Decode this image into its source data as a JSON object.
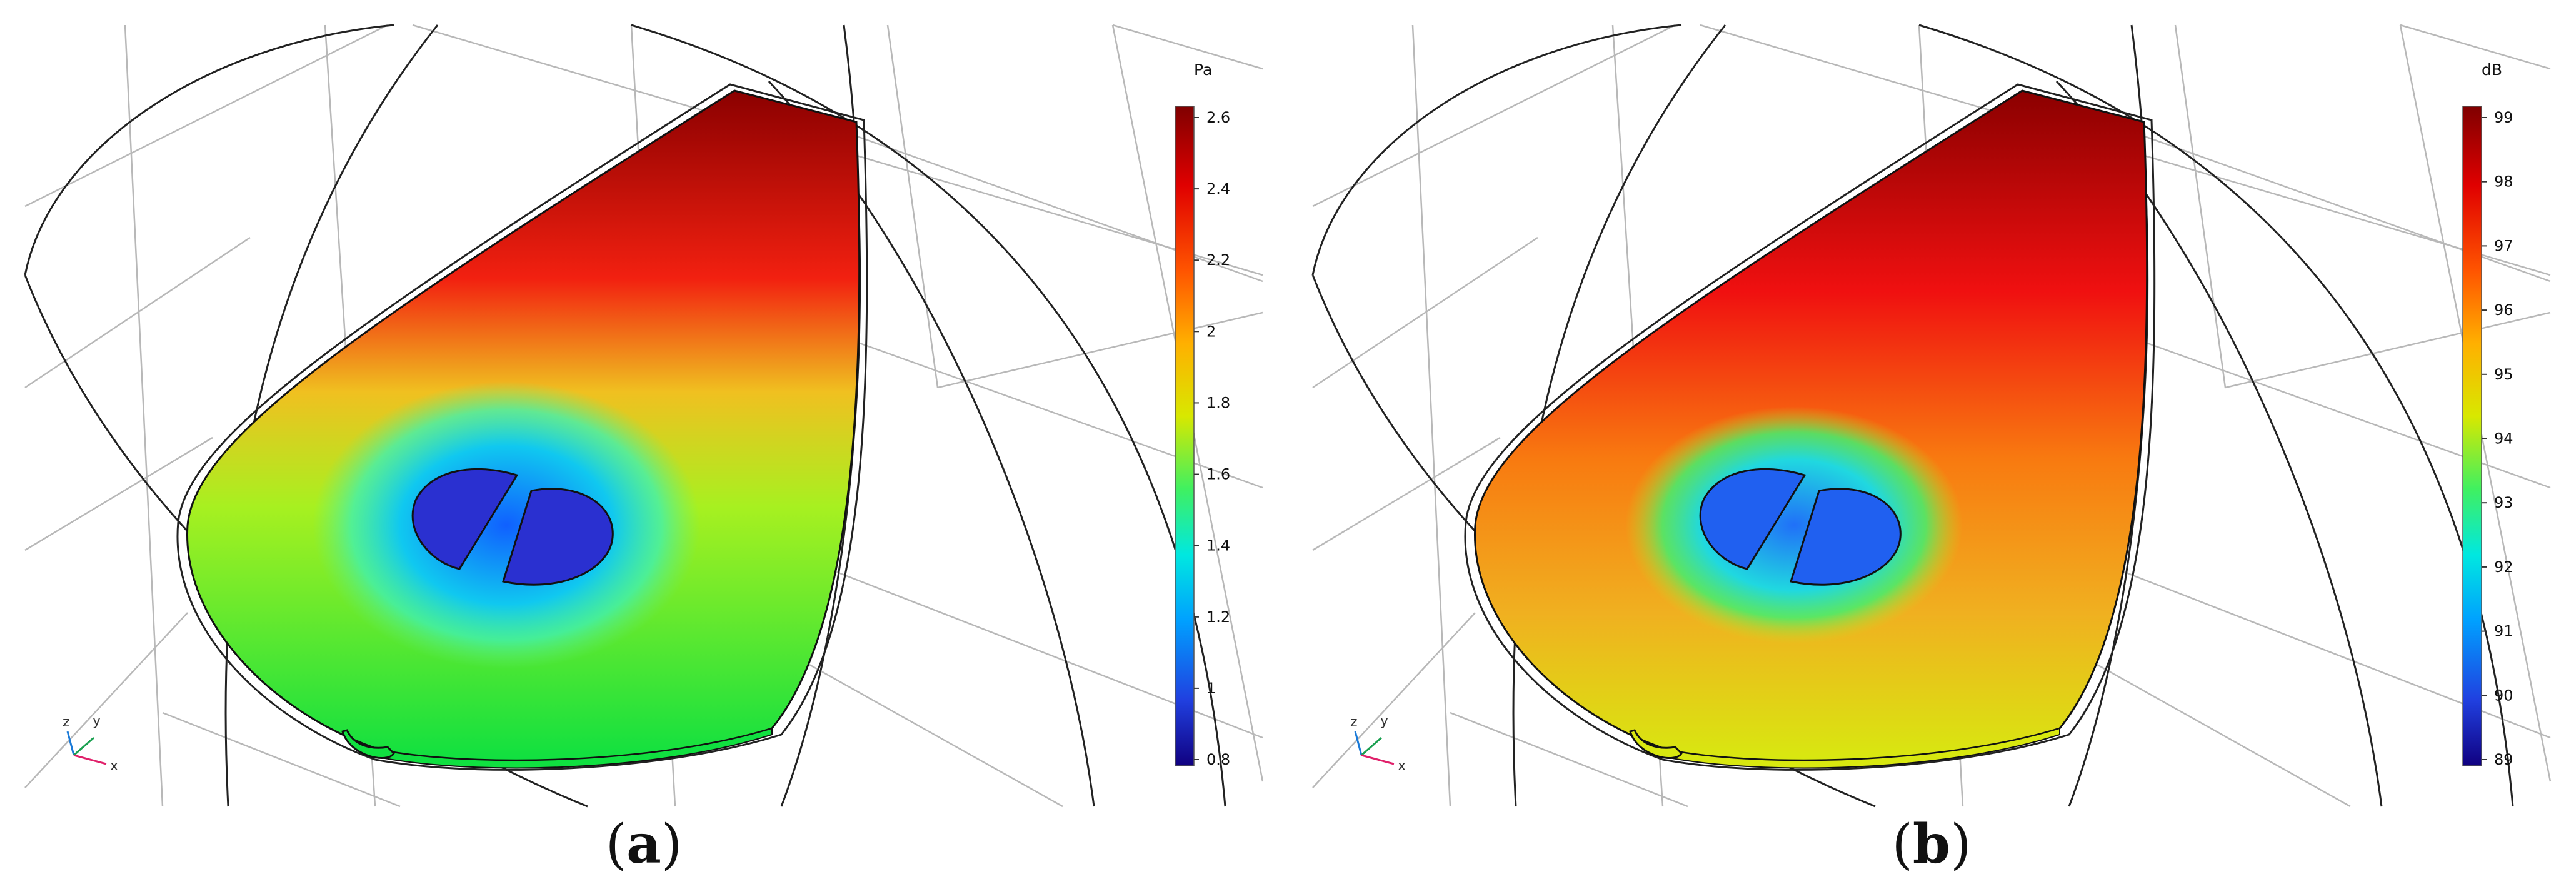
{
  "panels": [
    {
      "id": "a",
      "caption_letter": "a",
      "colorbar_unit": "Pa",
      "colorbar_ticks": [
        "2.6",
        "2.4",
        "2.2",
        "2",
        "1.8",
        "1.6",
        "1.4",
        "1.2",
        "1",
        "0.8"
      ],
      "axis_labels": {
        "z": "z",
        "y": "y",
        "x": "x"
      },
      "field_colors": {
        "top": "#8b0000",
        "upper": "#f22010",
        "mid": "#f0c020",
        "lower": "#a8f020",
        "bottom": "#10e040",
        "hole_ring": "#10d8e8",
        "hole": "#2a30d0"
      }
    },
    {
      "id": "b",
      "caption_letter": "b",
      "colorbar_unit": "dB",
      "colorbar_ticks": [
        "99",
        "98",
        "97",
        "96",
        "95",
        "94",
        "93",
        "92",
        "91",
        "90",
        "89"
      ],
      "axis_labels": {
        "z": "z",
        "y": "y",
        "x": "x"
      },
      "field_colors": {
        "top": "#8b0000",
        "upper": "#f01010",
        "mid": "#f87a10",
        "lower": "#f0b020",
        "bottom": "#d8e810",
        "hole_ring": "#20e8a0",
        "hole": "#2060f0"
      }
    }
  ]
}
